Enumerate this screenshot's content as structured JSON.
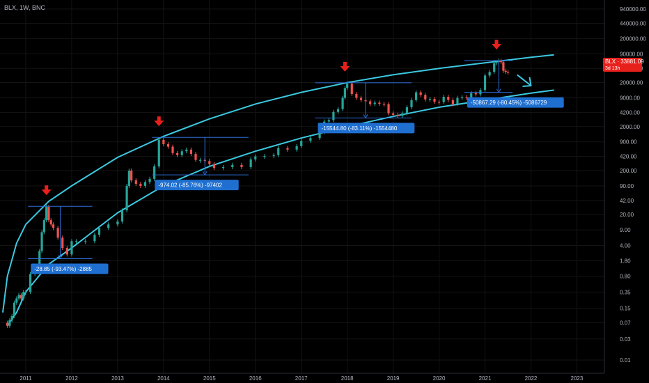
{
  "header": {
    "symbol": "BLX, 1W, BNC"
  },
  "price_label": {
    "text": "BLX · 33881.09",
    "countdown": "3d 13h"
  },
  "colors": {
    "background": "#000000",
    "up": "#26a69a",
    "down": "#ef5350",
    "channel": "#3cc8e0",
    "measure": "#2d6fd6",
    "arrow": "#e8201b",
    "label_bg": "#1f6fd1",
    "price_tag": "#e8201b",
    "text": "#b2b5be"
  },
  "chart_data": {
    "type": "line",
    "title": "",
    "xlabel": "",
    "ylabel": "",
    "y_scale": "log",
    "ylim": [
      0.005,
      1500000
    ],
    "xlim": [
      2010.5,
      2023.6
    ],
    "x_ticks": [
      "2011",
      "2012",
      "2013",
      "2014",
      "2015",
      "2016",
      "2017",
      "2018",
      "2019",
      "2020",
      "2021",
      "2022",
      "2023"
    ],
    "y_ticks": [
      "940000.00",
      "440000.00",
      "200000.00",
      "90000.00",
      "42000.00",
      "20000.00",
      "9000.00",
      "4200.00",
      "2000.00",
      "900.00",
      "420.00",
      "200.00",
      "90.00",
      "42.00",
      "20.00",
      "9.00",
      "4.00",
      "1.80",
      "0.80",
      "0.35",
      "0.15",
      "0.07",
      "0.03",
      "0.01"
    ],
    "series": [
      {
        "x": [
          2010.55,
          2010.6,
          2010.65,
          2010.7,
          2010.75,
          2010.8,
          2010.85,
          2010.9,
          2010.95,
          2011.0,
          2011.1,
          2011.2,
          2011.3,
          2011.35,
          2011.4,
          2011.45,
          2011.5,
          2011.55,
          2011.6,
          2011.7,
          2011.8,
          2011.9,
          2012.0,
          2012.1,
          2012.3,
          2012.5,
          2012.6,
          2012.8,
          2013.0,
          2013.1,
          2013.2,
          2013.25,
          2013.3,
          2013.4,
          2013.5,
          2013.6,
          2013.7,
          2013.8,
          2013.9,
          2014.0,
          2014.1,
          2014.2,
          2014.3,
          2014.4,
          2014.5,
          2014.6,
          2014.7,
          2014.8,
          2014.9,
          2015.0,
          2015.1,
          2015.3,
          2015.5,
          2015.7,
          2015.9,
          2016.0,
          2016.2,
          2016.4,
          2016.5,
          2016.7,
          2016.9,
          2017.0,
          2017.2,
          2017.4,
          2017.5,
          2017.6,
          2017.7,
          2017.8,
          2017.9,
          2017.95,
          2018.0,
          2018.1,
          2018.2,
          2018.3,
          2018.4,
          2018.5,
          2018.6,
          2018.7,
          2018.8,
          2018.9,
          2019.0,
          2019.1,
          2019.2,
          2019.3,
          2019.4,
          2019.5,
          2019.6,
          2019.7,
          2019.8,
          2019.9,
          2020.0,
          2020.1,
          2020.2,
          2020.3,
          2020.4,
          2020.5,
          2020.6,
          2020.7,
          2020.8,
          2020.9,
          2021.0,
          2021.1,
          2021.2,
          2021.25,
          2021.3,
          2021.35,
          2021.4,
          2021.45,
          2021.5
        ],
        "y": [
          0.07,
          0.06,
          0.08,
          0.1,
          0.2,
          0.25,
          0.3,
          0.25,
          0.35,
          0.35,
          0.9,
          1.0,
          3.0,
          8.0,
          15.0,
          30.0,
          15.0,
          12.0,
          10.0,
          6.0,
          3.5,
          2.5,
          5.0,
          5.0,
          5.0,
          7.0,
          10.0,
          12.0,
          14.0,
          25.0,
          90.0,
          200.0,
          120.0,
          100.0,
          90.0,
          110.0,
          130.0,
          250.0,
          1000.0,
          800.0,
          700.0,
          500.0,
          450.0,
          550.0,
          600.0,
          480.0,
          350.0,
          350.0,
          330.0,
          280.0,
          230.0,
          240.0,
          270.0,
          240.0,
          360.0,
          420.0,
          430.0,
          450.0,
          650.0,
          600.0,
          720.0,
          950.0,
          1100.0,
          1500.0,
          2600.0,
          2800.0,
          4300.0,
          5000.0,
          9000.0,
          15000.0,
          19000.0,
          11000.0,
          9000.0,
          8000.0,
          7500.0,
          6500.0,
          7000.0,
          6600.0,
          6500.0,
          4000.0,
          3700.0,
          3500.0,
          4000.0,
          5500.0,
          8000.0,
          12000.0,
          10500.0,
          8300.0,
          8500.0,
          7300.0,
          7200.0,
          9500.0,
          8000.0,
          6500.0,
          9000.0,
          9300.0,
          9200.0,
          11500.0,
          10800.0,
          13500.0,
          29000.0,
          35000.0,
          55000.0,
          58000.0,
          63000.0,
          58000.0,
          37000.0,
          35000.0,
          33881.09
        ]
      }
    ],
    "channel_upper": {
      "x": [
        2010.5,
        2010.6,
        2010.8,
        2011.0,
        2011.5,
        2012.0,
        2013.0,
        2014.0,
        2015.0,
        2016.0,
        2017.0,
        2018.0,
        2019.0,
        2020.0,
        2021.0,
        2022.0,
        2022.5
      ],
      "y": [
        0.12,
        0.8,
        4.5,
        12.0,
        40.0,
        90.0,
        400.0,
        1200.0,
        3000.0,
        6500.0,
        12000.0,
        20000.0,
        30000.0,
        42000.0,
        56000.0,
        75000.0,
        85000.0
      ]
    },
    "channel_lower": {
      "x": [
        2010.6,
        2010.8,
        2011.0,
        2011.5,
        2012.0,
        2013.0,
        2014.0,
        2015.0,
        2016.0,
        2017.0,
        2018.0,
        2019.0,
        2020.0,
        2021.0,
        2022.0,
        2022.5
      ],
      "y": [
        0.06,
        0.12,
        0.35,
        1.5,
        3.5,
        22.0,
        90.0,
        250.0,
        550.0,
        1100.0,
        2000.0,
        3400.0,
        5500.0,
        8000.0,
        11500.0,
        13500.0
      ]
    },
    "annotations": [
      {
        "text": "-28.85 (-93.47%) -2885",
        "top": 31.0,
        "bottom": 2.0,
        "x_start": 2011.05,
        "x_end": 2012.45,
        "x_mid": 2011.75,
        "tops_marked": 2011.45
      },
      {
        "text": "-974.02 (-85.76%) -97402",
        "top": 1140.0,
        "bottom": 160.0,
        "x_start": 2013.75,
        "x_end": 2015.85,
        "x_mid": 2014.9,
        "tops_marked": 2013.9
      },
      {
        "text": "-15544.80 (-83.11%) -1554480",
        "top": 19800.0,
        "bottom": 3150.0,
        "x_start": 2017.3,
        "x_end": 2019.4,
        "x_mid": 2018.4,
        "tops_marked": 2017.95
      },
      {
        "text": "-50867.29 (-80.45%) -5086729",
        "top": 63000.0,
        "bottom": 12000.0,
        "x_start": 2020.55,
        "x_end": 2021.6,
        "x_mid": 2021.3,
        "tops_marked": 2021.25
      }
    ],
    "outlook_arrow": {
      "x_from": 2021.7,
      "y_from": 30000.0,
      "x_to": 2022.0,
      "y_to": 17000.0
    }
  }
}
